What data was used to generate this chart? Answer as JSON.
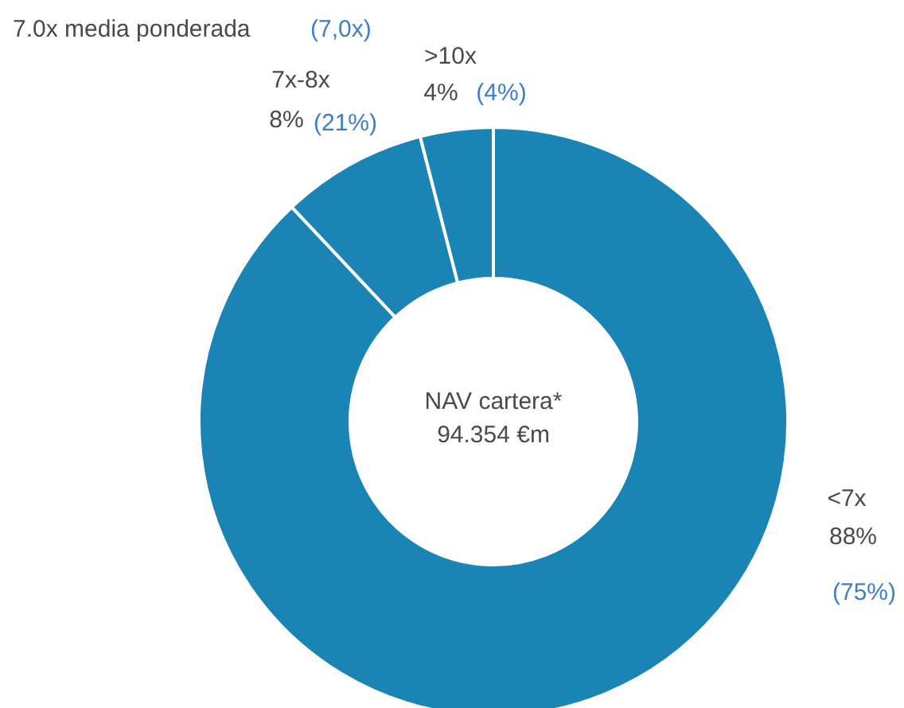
{
  "chart_data": {
    "type": "donut",
    "categories": [
      "<7x",
      "7x-8x",
      ">10x"
    ],
    "values": [
      88,
      8,
      4
    ],
    "colors": [
      "#1a84b4",
      "#1a84b4",
      "#1a84b4"
    ],
    "value_labels": [
      "88%",
      "8%",
      "4%"
    ],
    "annotations": [
      "7.0x media ponderada",
      "(7,0x)",
      "(75%)",
      "(21%)",
      "(4%)",
      "NAV cartera*",
      "94.354 €m"
    ]
  }
}
